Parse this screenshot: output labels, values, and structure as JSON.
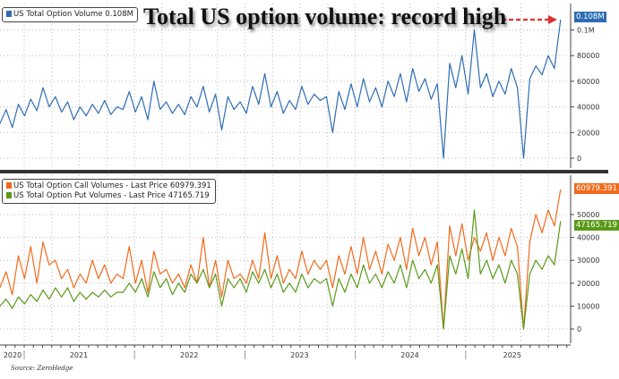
{
  "chart_data": [
    {
      "type": "line",
      "title": "Total US option volume: record high",
      "x_range": [
        2020.78,
        2025.86
      ],
      "ylim": [
        -8000,
        118000
      ],
      "yticks": [
        0,
        20000,
        40000,
        60000,
        80000,
        100000
      ],
      "ytick_labels": [
        "0",
        "20000",
        "40000",
        "60000",
        "80000",
        "0.1M"
      ],
      "legend": "top-left",
      "series": [
        {
          "name": "US Total Option Volume",
          "last_label": "0.108M",
          "color": "#2e6db4",
          "values": [
            27000,
            38000,
            24000,
            42000,
            33000,
            46000,
            37000,
            55000,
            40000,
            48000,
            36000,
            44000,
            30000,
            40000,
            33000,
            42000,
            35000,
            45000,
            34000,
            40000,
            38000,
            52000,
            36000,
            48000,
            30000,
            60000,
            38000,
            44000,
            35000,
            42000,
            34000,
            48000,
            40000,
            56000,
            36000,
            50000,
            22000,
            48000,
            38000,
            44000,
            35000,
            56000,
            42000,
            66000,
            40000,
            52000,
            35000,
            45000,
            38000,
            56000,
            42000,
            50000,
            45000,
            48000,
            20000,
            52000,
            38000,
            58000,
            40000,
            62000,
            44000,
            55000,
            40000,
            60000,
            48000,
            66000,
            44000,
            70000,
            52000,
            62000,
            46000,
            58000,
            0,
            74000,
            55000,
            80000,
            50000,
            100000,
            55000,
            66000,
            48000,
            60000,
            50000,
            70000,
            55000,
            0,
            62000,
            72000,
            65000,
            80000,
            70000,
            108000
          ]
        }
      ]
    },
    {
      "type": "line",
      "x_range": [
        2020.78,
        2025.86
      ],
      "ylim": [
        -4000,
        58000
      ],
      "yticks": [
        0,
        10000,
        20000,
        30000,
        40000,
        50000
      ],
      "ytick_labels": [
        "0",
        "10000",
        "20000",
        "30000",
        "40000",
        "50000"
      ],
      "legend": "top-left",
      "xtick_labels": [
        "2020",
        "2021",
        "2022",
        "2023",
        "2024",
        "2025"
      ],
      "series": [
        {
          "name": "US Total Option Call Volumes - Last Price",
          "last_label": "60979.391",
          "color": "#f26a1b",
          "values": [
            18000,
            25000,
            15000,
            32000,
            22000,
            36000,
            20000,
            38000,
            28000,
            30000,
            22000,
            26000,
            18000,
            24000,
            20000,
            30000,
            22000,
            28000,
            20000,
            24000,
            22000,
            36000,
            20000,
            30000,
            16000,
            34000,
            24000,
            26000,
            20000,
            24000,
            18000,
            28000,
            20000,
            40000,
            18000,
            30000,
            14000,
            30000,
            22000,
            24000,
            20000,
            30000,
            22000,
            42000,
            22000,
            32000,
            20000,
            26000,
            22000,
            34000,
            24000,
            30000,
            26000,
            30000,
            18000,
            32000,
            24000,
            36000,
            24000,
            40000,
            26000,
            34000,
            24000,
            37000,
            30000,
            40000,
            26000,
            44000,
            32000,
            40000,
            28000,
            38000,
            0,
            45000,
            32000,
            46000,
            30000,
            40000,
            34000,
            42000,
            30000,
            40000,
            32000,
            44000,
            36000,
            0,
            38000,
            50000,
            42000,
            52000,
            45000,
            60979
          ]
        },
        {
          "name": "US Total Option Put Volumes - Last Price",
          "last_label": "47165.719",
          "color": "#5a9a1a",
          "values": [
            10000,
            13000,
            9000,
            14000,
            11000,
            15000,
            12000,
            17000,
            13000,
            18000,
            14000,
            18000,
            12000,
            16000,
            13000,
            16000,
            14000,
            17000,
            14000,
            16000,
            16000,
            20000,
            16000,
            22000,
            14000,
            25000,
            18000,
            22000,
            15000,
            20000,
            16000,
            24000,
            20000,
            26000,
            18000,
            24000,
            10000,
            22000,
            18000,
            22000,
            16000,
            25000,
            20000,
            26000,
            18000,
            24000,
            16000,
            20000,
            16000,
            24000,
            18000,
            22000,
            20000,
            22000,
            10000,
            22000,
            16000,
            24000,
            18000,
            28000,
            20000,
            24000,
            18000,
            25000,
            20000,
            28000,
            18000,
            30000,
            22000,
            26000,
            20000,
            28000,
            0,
            32000,
            24000,
            35000,
            22000,
            52000,
            24000,
            30000,
            22000,
            28000,
            20000,
            30000,
            24000,
            0,
            24000,
            30000,
            26000,
            32000,
            28000,
            47166
          ]
        }
      ]
    }
  ],
  "source": "Source: ZeroHedge"
}
